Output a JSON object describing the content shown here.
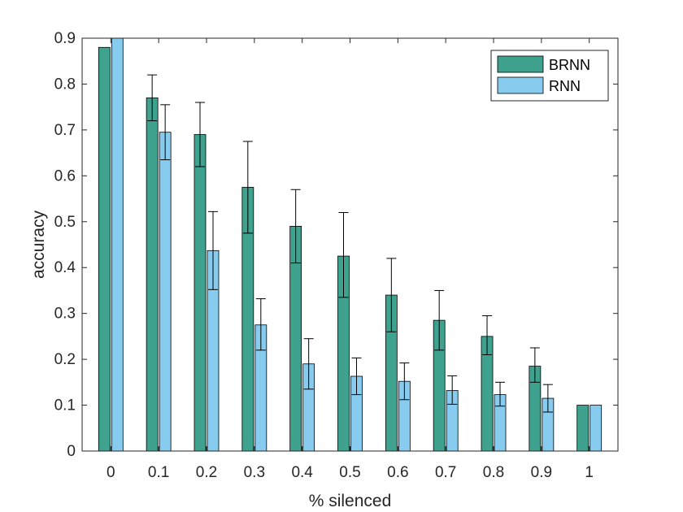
{
  "chart_data": {
    "type": "bar",
    "title": "",
    "xlabel": "% silenced",
    "ylabel": "accuracy",
    "categories": [
      "0",
      "0.1",
      "0.2",
      "0.3",
      "0.4",
      "0.5",
      "0.6",
      "0.7",
      "0.8",
      "0.9",
      "1"
    ],
    "ylim": [
      0,
      0.9
    ],
    "yticks": [
      "0",
      "0.1",
      "0.2",
      "0.3",
      "0.4",
      "0.5",
      "0.6",
      "0.7",
      "0.8",
      "0.9"
    ],
    "grid": false,
    "legend_position": "top-right",
    "series": [
      {
        "name": "BRNN",
        "color": "#3fa28e",
        "values": [
          0.88,
          0.77,
          0.69,
          0.575,
          0.49,
          0.425,
          0.34,
          0.285,
          0.25,
          0.185,
          0.1
        ],
        "err_low": [
          0,
          0.05,
          0.07,
          0.1,
          0.08,
          0.09,
          0.08,
          0.065,
          0.04,
          0.035,
          0
        ],
        "err_high": [
          0,
          0.05,
          0.07,
          0.1,
          0.08,
          0.095,
          0.08,
          0.065,
          0.045,
          0.04,
          0
        ]
      },
      {
        "name": "RNN",
        "color": "#87ccee",
        "values": [
          0.9,
          0.695,
          0.437,
          0.275,
          0.19,
          0.163,
          0.152,
          0.132,
          0.123,
          0.115,
          0.1
        ],
        "err_low": [
          0,
          0.06,
          0.085,
          0.055,
          0.055,
          0.04,
          0.04,
          0.03,
          0.025,
          0.03,
          0
        ],
        "err_high": [
          0,
          0.06,
          0.085,
          0.057,
          0.055,
          0.04,
          0.04,
          0.032,
          0.027,
          0.03,
          0
        ]
      }
    ]
  }
}
